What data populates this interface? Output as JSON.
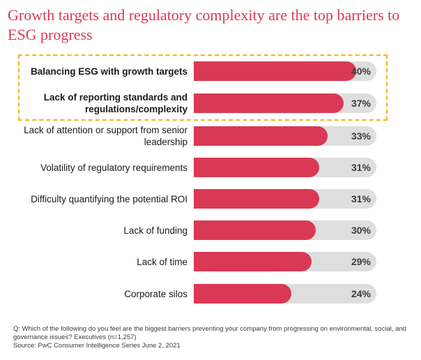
{
  "title": "Growth targets and regulatory complexity are the top barriers to ESG progress",
  "chart_data": {
    "type": "bar",
    "orientation": "horizontal",
    "title": "Growth targets and regulatory complexity are the top barriers to ESG progress",
    "categories": [
      "Balancing ESG with growth targets",
      "Lack of reporting standards and regulations/complexity",
      "Lack of attention or support from senior leadership",
      "Volatility of regulatory requirements",
      "Difficulty quantifying the potential ROI",
      "Lack of funding",
      "Lack of time",
      "Corporate silos"
    ],
    "values": [
      40,
      37,
      33,
      31,
      31,
      30,
      29,
      24
    ],
    "value_labels": [
      "40%",
      "37%",
      "33%",
      "31%",
      "31%",
      "30%",
      "29%",
      "24%"
    ],
    "highlighted": [
      true,
      true,
      false,
      false,
      false,
      false,
      false,
      false
    ],
    "xlim": [
      0,
      45
    ],
    "unit": "%",
    "bar_color": "#d93954",
    "track_color": "#dedede",
    "highlight_color": "#f2b51c"
  },
  "footnote": {
    "question": "Q: Which of the following do you feel are the biggest barriers preventing your company from progressing on environmental, social, and governance issues? Executives (n=1,257)",
    "source": "Source: PwC Consumer Intelligence Series June 2, 2021"
  }
}
